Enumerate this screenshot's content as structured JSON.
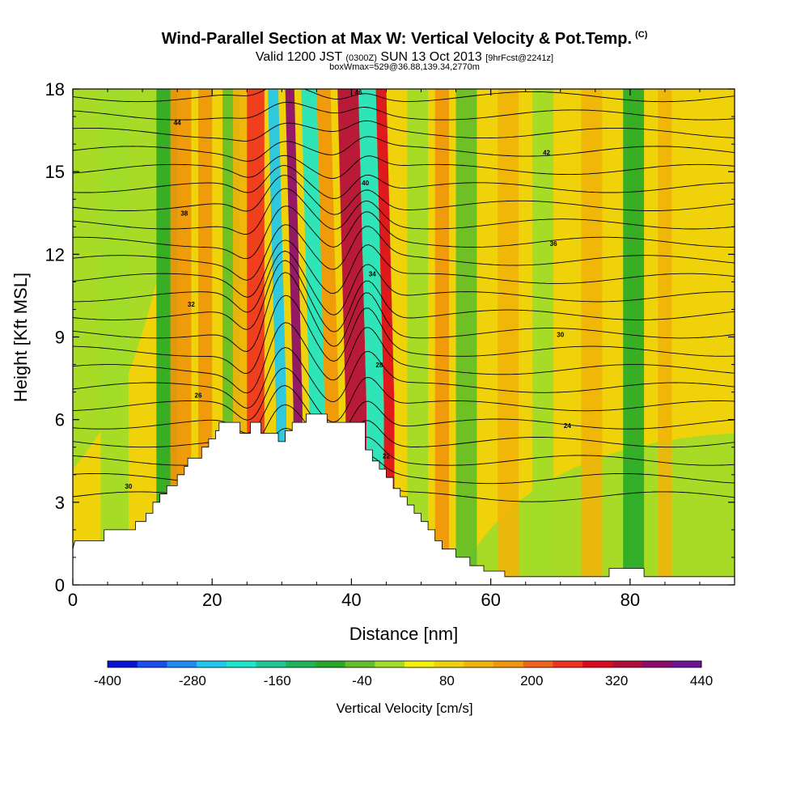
{
  "title": "Wind-Parallel Section at Max W: Vertical Velocity & Pot.Temp.",
  "title_mark": "(C)",
  "subtitle": {
    "valid": "Valid 1200 JST",
    "utc": "(0300Z)",
    "date": "SUN 13 Oct 2013",
    "fcst": "[9hrFcst@2241z]"
  },
  "subtitle2": "boxWmax=529@36.88,139.34,2770m",
  "chart_data": {
    "type": "heatmap",
    "xlabel": "Distance [nm]",
    "ylabel": "Height [Kft MSL]",
    "xlim": [
      0,
      95
    ],
    "ylim": [
      0,
      18
    ],
    "xticks": [
      "0",
      "20",
      "40",
      "60",
      "80"
    ],
    "yticks": [
      "0",
      "3",
      "6",
      "9",
      "12",
      "15",
      "18"
    ],
    "colorbar": {
      "label": "Vertical Velocity [cm/s]",
      "ticks": [
        "-400",
        "-280",
        "-160",
        "-40",
        "80",
        "200",
        "320",
        "440"
      ],
      "min": -400,
      "step": 40,
      "colors": [
        "#0a14d4",
        "#1a4ef0",
        "#1e8cf0",
        "#1ec8f0",
        "#1ee6c8",
        "#1ec896",
        "#1eb45a",
        "#28aa28",
        "#64be28",
        "#a0dc28",
        "#f0f00a",
        "#f0d20a",
        "#f0b40a",
        "#f0960a",
        "#f0641e",
        "#f0321e",
        "#dc0a1e",
        "#b40a3c",
        "#8c0a6e",
        "#6e1496"
      ]
    },
    "terrain": [
      [
        0,
        1.3
      ],
      [
        0.3,
        1.6
      ],
      [
        4.5,
        1.6
      ],
      [
        4.5,
        2
      ],
      [
        9,
        2
      ],
      [
        9,
        2.3
      ],
      [
        10.5,
        2.3
      ],
      [
        10.5,
        2.6
      ],
      [
        11.5,
        2.6
      ],
      [
        11.5,
        3
      ],
      [
        12.5,
        3
      ],
      [
        12.5,
        3.3
      ],
      [
        13.5,
        3.3
      ],
      [
        13.5,
        3.6
      ],
      [
        15,
        3.6
      ],
      [
        15,
        4
      ],
      [
        16,
        4
      ],
      [
        16,
        4.3
      ],
      [
        16.5,
        4.3
      ],
      [
        16.5,
        4.6
      ],
      [
        18.5,
        4.6
      ],
      [
        18.5,
        5
      ],
      [
        19.5,
        5
      ],
      [
        19.5,
        5.3
      ],
      [
        20.5,
        5.3
      ],
      [
        20.5,
        5.6
      ],
      [
        21,
        5.6
      ],
      [
        21,
        5.9
      ],
      [
        24,
        5.9
      ],
      [
        24,
        5.5
      ],
      [
        25.5,
        5.5
      ],
      [
        25.5,
        5.9
      ],
      [
        27,
        5.9
      ],
      [
        27,
        5.5
      ],
      [
        29.5,
        5.5
      ],
      [
        29.5,
        5.2
      ],
      [
        30.5,
        5.2
      ],
      [
        30.5,
        5.6
      ],
      [
        31.5,
        5.6
      ],
      [
        31.5,
        5.9
      ],
      [
        33.5,
        5.9
      ],
      [
        33.5,
        6.2
      ],
      [
        36.5,
        6.2
      ],
      [
        36.5,
        5.9
      ],
      [
        42,
        5.9
      ],
      [
        42,
        4.9
      ],
      [
        43,
        4.9
      ],
      [
        43,
        4.5
      ],
      [
        44,
        4.5
      ],
      [
        44,
        4.2
      ],
      [
        45,
        4.2
      ],
      [
        45,
        3.9
      ],
      [
        46,
        3.9
      ],
      [
        46,
        3.5
      ],
      [
        47,
        3.5
      ],
      [
        47,
        3.2
      ],
      [
        48,
        3.2
      ],
      [
        48,
        2.9
      ],
      [
        49,
        2.9
      ],
      [
        49,
        2.6
      ],
      [
        50,
        2.6
      ],
      [
        50,
        2.3
      ],
      [
        51,
        2.3
      ],
      [
        51,
        2
      ],
      [
        52,
        2
      ],
      [
        52,
        1.6
      ],
      [
        53,
        1.6
      ],
      [
        53,
        1.3
      ],
      [
        55,
        1.3
      ],
      [
        55,
        1
      ],
      [
        57,
        1
      ],
      [
        57,
        0.7
      ],
      [
        59,
        0.7
      ],
      [
        59,
        0.5
      ],
      [
        62,
        0.5
      ],
      [
        62,
        0.3
      ],
      [
        77,
        0.3
      ],
      [
        77,
        0.6
      ],
      [
        82,
        0.6
      ],
      [
        82,
        0.3
      ],
      [
        95,
        0.3
      ]
    ],
    "velocity_bands": [
      {
        "x": [
          4,
          8
        ],
        "w": -40
      },
      {
        "x": [
          12,
          15
        ],
        "w": -100
      },
      {
        "x": [
          14,
          17
        ],
        "w": 140
      },
      {
        "x": [
          18,
          20
        ],
        "w": 140
      },
      {
        "x": [
          21.5,
          24
        ],
        "w": -80
      },
      {
        "x": [
          23,
          25
        ],
        "w": 100
      },
      {
        "x": [
          25,
          27.5
        ],
        "w": 220
      },
      {
        "x": [
          28,
          29.5
        ],
        "w": -280
      },
      {
        "x": [
          30.5,
          31.8
        ],
        "w": 340
      },
      {
        "x": [
          32.8,
          35
        ],
        "w": -240
      },
      {
        "x": [
          35,
          37
        ],
        "w": 120
      },
      {
        "x": [
          38,
          41
        ],
        "w": 300
      },
      {
        "x": [
          41,
          43.5
        ],
        "w": -220
      },
      {
        "x": [
          43.5,
          45
        ],
        "w": 260
      },
      {
        "x": [
          48,
          51
        ],
        "w": -20
      },
      {
        "x": [
          52,
          54
        ],
        "w": 140
      },
      {
        "x": [
          55,
          58
        ],
        "w": -80
      },
      {
        "x": [
          61,
          64
        ],
        "w": 100
      },
      {
        "x": [
          66,
          69
        ],
        "w": -40
      },
      {
        "x": [
          73,
          76
        ],
        "w": 80
      },
      {
        "x": [
          79,
          82
        ],
        "w": -100
      },
      {
        "x": [
          84,
          86
        ],
        "w": 80
      }
    ],
    "theta_contours": {
      "levels_K": [
        300,
        302,
        304,
        306,
        308,
        310,
        312,
        314,
        316,
        318,
        320,
        322,
        324,
        326,
        328,
        330,
        332,
        334,
        336,
        338,
        340,
        342,
        344,
        346
      ],
      "labels": [
        "30",
        "22",
        "24",
        "26",
        "28",
        "30",
        "32",
        "34",
        "36",
        "38",
        "40",
        "42",
        "44",
        "46"
      ]
    }
  }
}
